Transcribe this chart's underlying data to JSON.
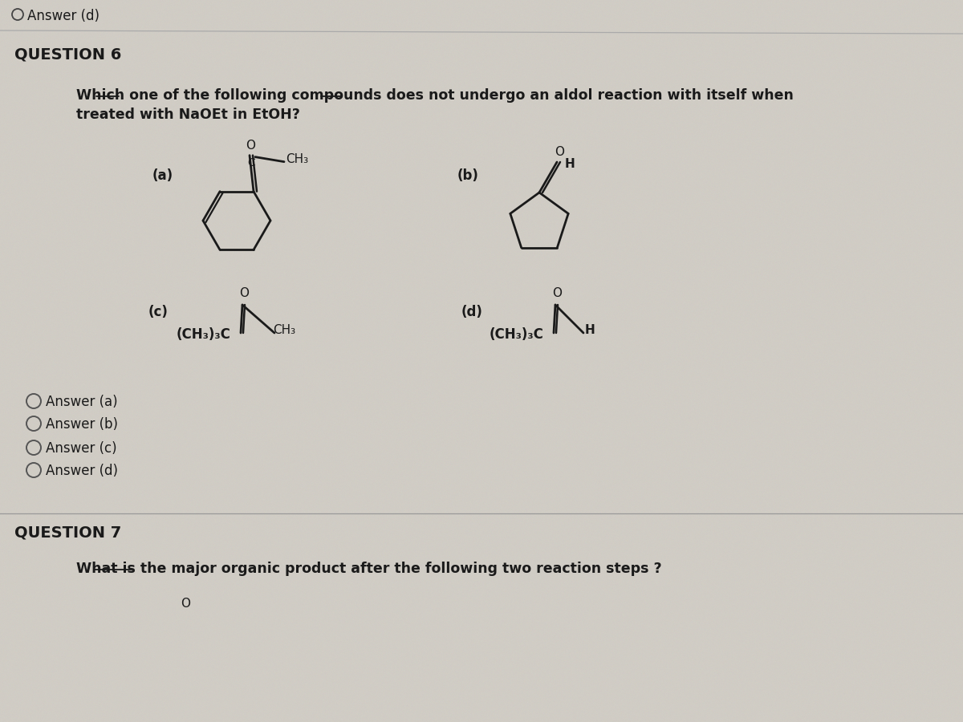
{
  "bg_color": "#ccc8c0",
  "panel_color": "#dedad4",
  "text_color": "#1a1a1a",
  "title_top": "Answer (d)",
  "question6_label": "QUESTION 6",
  "question6_line1": "Which one of the following compounds does not undergo an aldol reaction with itself when",
  "question6_line2": "treated with NaOEt in EtOH?",
  "answers": [
    "Answer (a)",
    "Answer (b)",
    "Answer (c)",
    "Answer (d)"
  ],
  "question7_label": "QUESTION 7",
  "question7_text": "What is the major organic product after the following two reaction steps ?"
}
